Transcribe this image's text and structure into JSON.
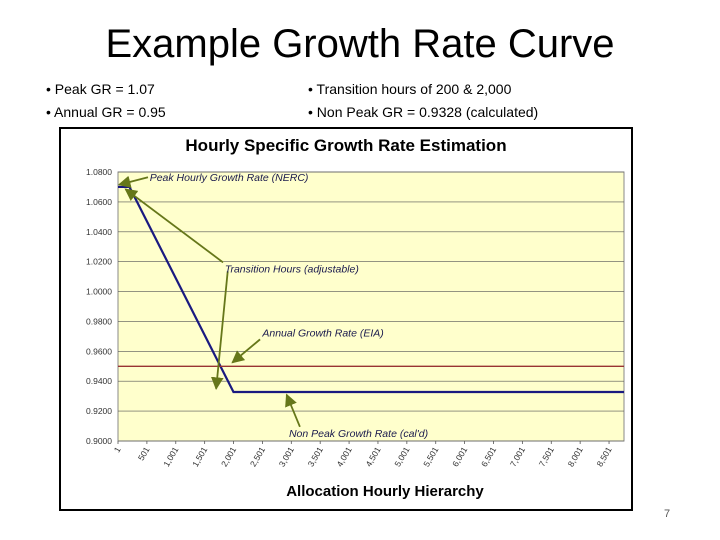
{
  "slide": {
    "title": "Example Growth Rate Curve",
    "bullets_left": [
      "Peak GR = 1.07",
      "Annual GR = 0.95"
    ],
    "bullets_right": [
      "Transition hours of 200 & 2,000",
      "Non Peak  GR = 0.9328 (calculated)"
    ],
    "page_number": "7"
  },
  "chart_data": {
    "type": "line",
    "title": "Hourly Specific Growth Rate Estimation",
    "xlabel": "Allocation Hourly Hierarchy",
    "ylabel": "",
    "x_ticks": [
      "1",
      "501",
      "1,001",
      "1,501",
      "2,001",
      "2,501",
      "3,001",
      "3,501",
      "4,001",
      "4,501",
      "5,001",
      "5,501",
      "6,001",
      "6,501",
      "7,001",
      "7,501",
      "8,001",
      "8,501"
    ],
    "xlim": [
      1,
      8760
    ],
    "ylim": [
      0.9,
      1.08
    ],
    "y_ticks": [
      "0.9000",
      "0.9200",
      "0.9400",
      "0.9600",
      "0.9800",
      "1.0000",
      "1.0200",
      "1.0400",
      "1.0600",
      "1.0800"
    ],
    "grid": true,
    "plot_background": "#ffffcc",
    "series": [
      {
        "color": "#1a1a80",
        "x": [
          1,
          200,
          2000,
          8760
        ],
        "y": [
          1.07,
          1.07,
          0.9328,
          0.9328
        ]
      },
      {
        "color": "#993333",
        "x": [
          1,
          8760
        ],
        "y": [
          0.95,
          0.95
        ]
      }
    ],
    "annotations": [
      {
        "text": "Peak Hourly Growth Rate (NERC)",
        "label_x": 550,
        "label_y": 1.0765,
        "arrows": [
          {
            "from": [
              520,
              1.0765
            ],
            "to": [
              20,
              1.0715
            ]
          }
        ]
      },
      {
        "text": "Transition Hours (adjustable)",
        "label_x": 1850,
        "label_y": 1.0155,
        "arrows": [
          {
            "from": [
              1820,
              1.0195
            ],
            "to": [
              130,
              1.0685
            ]
          },
          {
            "from": [
              1900,
              1.0135
            ],
            "to": [
              1700,
              0.935
            ]
          }
        ]
      },
      {
        "text": "Annual Growth Rate (EIA)",
        "label_x": 2500,
        "label_y": 0.9725,
        "arrows": [
          {
            "from": [
              2460,
              0.968
            ],
            "to": [
              1980,
              0.9525
            ]
          }
        ]
      },
      {
        "text": "Non Peak Growth Rate (cal'd)",
        "label_x": 2960,
        "label_y": 0.9055,
        "arrows": [
          {
            "from": [
              3150,
              0.9095
            ],
            "to": [
              2920,
              0.931
            ]
          }
        ]
      }
    ],
    "colors": {
      "arrow": "#66771a",
      "annotation_text": "#1a1a4d"
    }
  }
}
